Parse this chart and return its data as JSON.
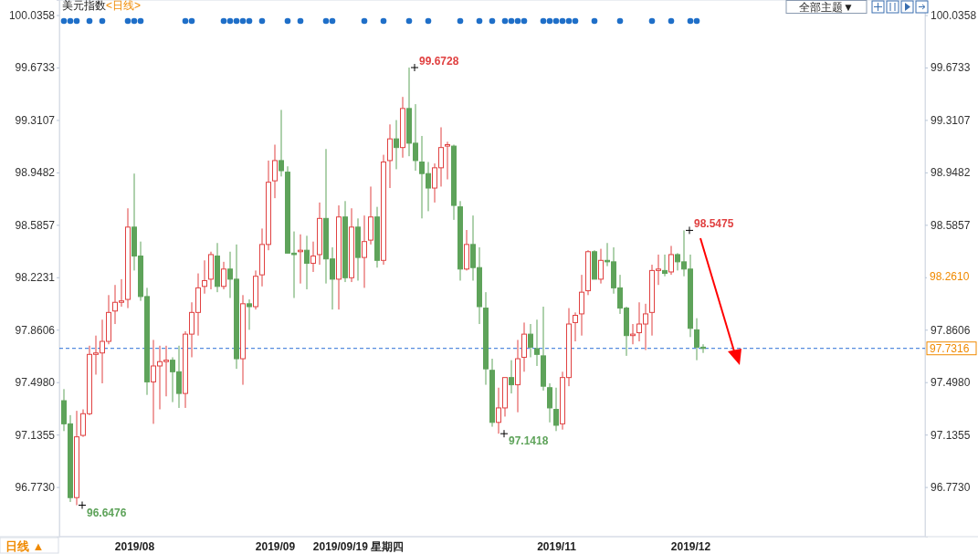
{
  "chart_data": {
    "type": "candlestick",
    "title": "美元指数",
    "subtitle": "<日线>",
    "categories": [
      null,
      null,
      null,
      null,
      null,
      null,
      null,
      null,
      null,
      null,
      null,
      "2019/08",
      null,
      null,
      null,
      null,
      null,
      null,
      null,
      null,
      null,
      null,
      null,
      null,
      null,
      null,
      null,
      null,
      null,
      null,
      null,
      null,
      null,
      "2019/09",
      null,
      null,
      null,
      null,
      null,
      null,
      null,
      null,
      null,
      null,
      null,
      null,
      "2019/09/19 星期四",
      null,
      null,
      null,
      null,
      null,
      null,
      null,
      null,
      null,
      null,
      null,
      null,
      null,
      null,
      null,
      null,
      null,
      null,
      null,
      null,
      null,
      null,
      null,
      null,
      null,
      null,
      null,
      null,
      null,
      null,
      "2019/11",
      null,
      null,
      null,
      null,
      null,
      null,
      null,
      null,
      null,
      null,
      null,
      null,
      null,
      null,
      null,
      null,
      null,
      null,
      null,
      null,
      "2019/12",
      null,
      null
    ],
    "ohlc": [
      [
        97.37,
        97.45,
        97.16,
        97.21
      ],
      [
        97.21,
        97.27,
        96.67,
        96.7
      ],
      [
        96.7,
        97.3,
        96.6476,
        97.12
      ],
      [
        97.13,
        97.31,
        97.12,
        97.28
      ],
      [
        97.28,
        97.75,
        97.27,
        97.69
      ],
      [
        97.69,
        97.82,
        97.55,
        97.7
      ],
      [
        97.7,
        97.93,
        97.49,
        97.78
      ],
      [
        97.78,
        98.1,
        97.76,
        97.98
      ],
      [
        97.99,
        98.17,
        97.9,
        98.05
      ],
      [
        98.05,
        98.21,
        98.02,
        98.06
      ],
      [
        98.07,
        98.7,
        98.01,
        98.57
      ],
      [
        98.57,
        98.94,
        98.27,
        98.37
      ],
      [
        98.37,
        98.47,
        98.06,
        98.09
      ],
      [
        98.09,
        98.15,
        97.41,
        97.5
      ],
      [
        97.5,
        97.79,
        97.21,
        97.61
      ],
      [
        97.61,
        97.75,
        97.31,
        97.64
      ],
      [
        97.64,
        97.75,
        97.4,
        97.65
      ],
      [
        97.65,
        97.67,
        97.36,
        97.57
      ],
      [
        97.57,
        97.75,
        97.32,
        97.42
      ],
      [
        97.42,
        97.85,
        97.32,
        97.83
      ],
      [
        97.83,
        98.05,
        97.67,
        97.98
      ],
      [
        97.98,
        98.25,
        97.82,
        98.15
      ],
      [
        98.16,
        98.34,
        98.11,
        98.2
      ],
      [
        98.21,
        98.4,
        98.14,
        98.38
      ],
      [
        98.37,
        98.46,
        98.12,
        98.16
      ],
      [
        98.16,
        98.33,
        98.14,
        98.28
      ],
      [
        98.28,
        98.4,
        98.08,
        98.21
      ],
      [
        98.21,
        98.45,
        97.59,
        97.66
      ],
      [
        97.66,
        98.1,
        97.48,
        98.04
      ],
      [
        98.04,
        98.07,
        97.86,
        98.02
      ],
      [
        98.02,
        98.27,
        98.0,
        98.23
      ],
      [
        98.24,
        98.56,
        98.16,
        98.45
      ],
      [
        98.45,
        99.03,
        98.41,
        98.88
      ],
      [
        98.89,
        99.14,
        98.77,
        99.03
      ],
      [
        99.03,
        99.38,
        98.92,
        98.96
      ],
      [
        98.95,
        98.99,
        98.39,
        98.39
      ],
      [
        98.39,
        98.54,
        98.08,
        98.38
      ],
      [
        98.4,
        98.52,
        98.18,
        98.41
      ],
      [
        98.41,
        98.51,
        98.14,
        98.32
      ],
      [
        98.32,
        98.47,
        98.26,
        98.37
      ],
      [
        98.38,
        98.74,
        98.31,
        98.63
      ],
      [
        98.63,
        99.11,
        98.18,
        98.35
      ],
      [
        98.35,
        98.43,
        98.0,
        98.21
      ],
      [
        98.21,
        98.72,
        98.0,
        98.64
      ],
      [
        98.64,
        98.75,
        98.19,
        98.22
      ],
      [
        98.22,
        98.7,
        98.19,
        98.57
      ],
      [
        98.57,
        98.63,
        98.2,
        98.36
      ],
      [
        98.36,
        98.65,
        98.15,
        98.47
      ],
      [
        98.48,
        98.85,
        98.45,
        98.64
      ],
      [
        98.64,
        98.71,
        98.29,
        98.34
      ],
      [
        98.34,
        99.07,
        98.31,
        99.02
      ],
      [
        99.03,
        99.28,
        98.84,
        99.18
      ],
      [
        99.18,
        99.31,
        98.97,
        99.12
      ],
      [
        99.12,
        99.47,
        99.05,
        99.39
      ],
      [
        99.39,
        99.6728,
        99.06,
        99.15
      ],
      [
        99.15,
        99.42,
        98.96,
        99.03
      ],
      [
        99.02,
        99.2,
        98.63,
        98.94
      ],
      [
        98.94,
        99.02,
        98.68,
        98.84
      ],
      [
        98.84,
        99.01,
        98.74,
        98.98
      ],
      [
        98.98,
        99.26,
        98.85,
        99.12
      ],
      [
        99.13,
        99.16,
        98.9,
        99.14
      ],
      [
        99.13,
        99.14,
        98.62,
        98.72
      ],
      [
        98.71,
        98.75,
        98.2,
        98.28
      ],
      [
        98.28,
        98.55,
        98.27,
        98.45
      ],
      [
        98.45,
        98.65,
        98.2,
        98.29
      ],
      [
        98.29,
        98.43,
        97.9,
        98.02
      ],
      [
        98.01,
        98.12,
        97.48,
        97.59
      ],
      [
        97.58,
        97.66,
        97.19,
        97.22
      ],
      [
        97.22,
        97.46,
        97.1418,
        97.32
      ],
      [
        97.32,
        97.53,
        97.26,
        97.53
      ],
      [
        97.53,
        97.65,
        97.42,
        97.48
      ],
      [
        97.48,
        97.79,
        97.29,
        97.66
      ],
      [
        97.67,
        97.91,
        97.57,
        97.83
      ],
      [
        97.83,
        97.9,
        97.67,
        97.74
      ],
      [
        97.73,
        97.93,
        97.61,
        97.69
      ],
      [
        97.68,
        98.02,
        97.44,
        97.47
      ],
      [
        97.46,
        97.49,
        97.22,
        97.32
      ],
      [
        97.31,
        97.46,
        97.16,
        97.2
      ],
      [
        97.21,
        97.57,
        97.17,
        97.53
      ],
      [
        97.53,
        98.01,
        97.47,
        97.9
      ],
      [
        97.91,
        97.98,
        97.78,
        97.96
      ],
      [
        97.97,
        98.24,
        97.82,
        98.12
      ],
      [
        98.13,
        98.41,
        98.1,
        98.4
      ],
      [
        98.4,
        98.41,
        98.21,
        98.21
      ],
      [
        98.21,
        98.42,
        98.18,
        98.34
      ],
      [
        98.34,
        98.46,
        98.3,
        98.33
      ],
      [
        98.33,
        98.43,
        98.11,
        98.15
      ],
      [
        98.15,
        98.24,
        97.97,
        98.01
      ],
      [
        98.01,
        98.02,
        97.68,
        97.82
      ],
      [
        97.82,
        97.9,
        97.76,
        97.83
      ],
      [
        97.84,
        98.05,
        97.78,
        97.9
      ],
      [
        97.9,
        98.04,
        97.72,
        97.97
      ],
      [
        97.98,
        98.31,
        97.82,
        98.27
      ],
      [
        98.27,
        98.38,
        98.17,
        98.28
      ],
      [
        98.27,
        98.38,
        98.23,
        98.25
      ],
      [
        98.26,
        98.44,
        98.24,
        98.38
      ],
      [
        98.38,
        98.39,
        98.27,
        98.33
      ],
      [
        98.33,
        98.5475,
        98.23,
        98.28
      ],
      [
        98.28,
        98.38,
        97.81,
        97.87
      ],
      [
        97.86,
        97.94,
        97.65,
        97.74
      ],
      [
        97.74,
        97.76,
        97.7,
        97.7316
      ]
    ],
    "colors": [
      "#5ea35a",
      "#5ea35a",
      "#e04141",
      "#e04141",
      "#e04141",
      "#e04141",
      "#e04141",
      "#e04141",
      "#e04141",
      "#e04141",
      "#e04141",
      "#5ea35a",
      "#5ea35a",
      "#5ea35a",
      "#e04141",
      "#e04141",
      "#e04141",
      "#5ea35a",
      "#5ea35a",
      "#e04141",
      "#e04141",
      "#e04141",
      "#e04141",
      "#e04141",
      "#5ea35a",
      "#e04141",
      "#5ea35a",
      "#5ea35a",
      "#e04141",
      "#5ea35a",
      "#e04141",
      "#e04141",
      "#e04141",
      "#e04141",
      "#5ea35a",
      "#5ea35a",
      "#5ea35a",
      "#e04141",
      "#5ea35a",
      "#e04141",
      "#e04141",
      "#5ea35a",
      "#5ea35a",
      "#e04141",
      "#5ea35a",
      "#e04141",
      "#5ea35a",
      "#e04141",
      "#e04141",
      "#5ea35a",
      "#e04141",
      "#e04141",
      "#5ea35a",
      "#e04141",
      "#5ea35a",
      "#5ea35a",
      "#5ea35a",
      "#5ea35a",
      "#e04141",
      "#e04141",
      "#e04141",
      "#5ea35a",
      "#5ea35a",
      "#e04141",
      "#5ea35a",
      "#5ea35a",
      "#5ea35a",
      "#5ea35a",
      "#e04141",
      "#e04141",
      "#5ea35a",
      "#e04141",
      "#e04141",
      "#5ea35a",
      "#5ea35a",
      "#5ea35a",
      "#5ea35a",
      "#5ea35a",
      "#e04141",
      "#e04141",
      "#e04141",
      "#e04141",
      "#e04141",
      "#5ea35a",
      "#e04141",
      "#5ea35a",
      "#5ea35a",
      "#5ea35a",
      "#5ea35a",
      "#e04141",
      "#e04141",
      "#e04141",
      "#e04141",
      "#e04141",
      "#5ea35a",
      "#e04141",
      "#5ea35a",
      "#5ea35a",
      "#5ea35a",
      "#5ea35a",
      "#5ea35a"
    ],
    "ylim": [
      96.43,
      100.14
    ],
    "yticks": [
      {
        "value": 96.773,
        "label": "96.7730"
      },
      {
        "value": 97.1355,
        "label": "97.1355"
      },
      {
        "value": 97.498,
        "label": "97.4980"
      },
      {
        "value": 97.8606,
        "label": "97.8606"
      },
      {
        "value": 98.2231,
        "label": "98.2231"
      },
      {
        "value": 98.5857,
        "label": "98.5857"
      },
      {
        "value": 98.9482,
        "label": "98.9482"
      },
      {
        "value": 99.3107,
        "label": "99.3107"
      },
      {
        "value": 99.6733,
        "label": "99.6733"
      },
      {
        "value": 100.0358,
        "label": "100.0358"
      }
    ],
    "ref_lines": [
      {
        "axis": "y",
        "value": 97.7316,
        "label": "97.7316",
        "color": "#2a6fd6",
        "line_style": "dashed"
      }
    ],
    "value_labels": [
      null,
      null,
      "96.6476",
      null,
      null,
      null,
      null,
      null,
      null,
      null,
      null,
      null,
      null,
      null,
      null,
      null,
      null,
      null,
      null,
      null,
      null,
      null,
      null,
      null,
      null,
      null,
      null,
      null,
      null,
      null,
      null,
      null,
      null,
      null,
      null,
      null,
      null,
      null,
      null,
      null,
      null,
      null,
      null,
      null,
      null,
      null,
      null,
      null,
      null,
      null,
      null,
      null,
      null,
      null,
      "99.6728",
      null,
      null,
      null,
      null,
      null,
      null,
      null,
      null,
      null,
      null,
      null,
      null,
      null,
      "97.1418",
      null,
      null,
      null,
      null,
      null,
      null,
      null,
      null,
      null,
      null,
      null,
      null,
      null,
      null,
      null,
      null,
      null,
      null,
      null,
      null,
      null,
      null,
      null,
      null,
      null,
      null,
      null,
      null,
      "98.5475",
      null,
      null,
      null
    ],
    "annotations": [
      "日线 ▲",
      "全部主题▼",
      "98.2610"
    ]
  }
}
